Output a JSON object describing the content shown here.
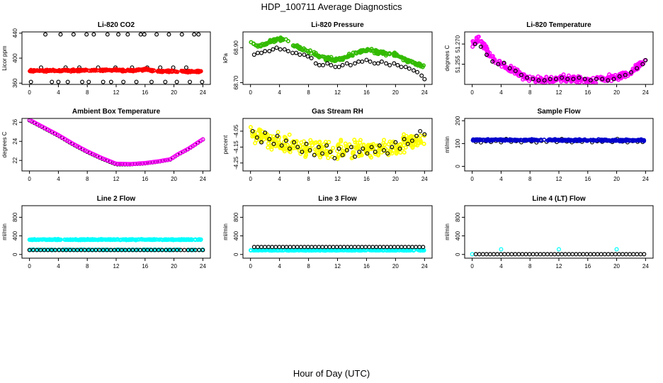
{
  "title": "HDP_100711  Average Diagnostics",
  "xlabel": "Hour of Day (UTC)",
  "x_ticks": [
    0,
    4,
    8,
    12,
    16,
    20,
    24
  ],
  "chart_data": [
    {
      "type": "scatter",
      "title": "Li-820 CO2",
      "ylabel": "Licor ppm",
      "ylim": [
        358,
        442
      ],
      "yticks": [
        "360",
        "400",
        "440"
      ],
      "ytick_values": [
        360,
        400,
        440
      ],
      "series": [
        {
          "name": "black",
          "color": "#000000",
          "kind": "sparse",
          "x": [
            0.2,
            1.6,
            2.2,
            3.1,
            4.0,
            4.3,
            5.0,
            5.3,
            6.1,
            6.9,
            7.3,
            7.9,
            8.2,
            8.9,
            9.5,
            10.2,
            10.8,
            11.3,
            11.9,
            12.3,
            13.0,
            13.6,
            14.2,
            14.8,
            15.4,
            15.9,
            16.3,
            16.9,
            17.6,
            18.1,
            18.8,
            19.3,
            19.9,
            20.4,
            21.1,
            21.7,
            22.2,
            22.8,
            23.4,
            23.9
          ],
          "y": [
            362,
            385,
            438,
            362,
            362,
            438,
            385,
            362,
            438,
            385,
            362,
            438,
            362,
            438,
            385,
            362,
            438,
            362,
            385,
            438,
            362,
            438,
            385,
            362,
            438,
            438,
            385,
            362,
            438,
            385,
            362,
            438,
            385,
            362,
            438,
            385,
            362,
            438,
            438,
            362
          ]
        },
        {
          "name": "red",
          "color": "#ff0000",
          "kind": "dense",
          "points": [
            [
              0,
              380
            ],
            [
              4,
              380
            ],
            [
              8,
              380.5
            ],
            [
              12,
              381
            ],
            [
              14.5,
              380
            ],
            [
              15.5,
              381
            ],
            [
              16.2,
              383
            ],
            [
              17,
              379.5
            ],
            [
              20,
              379
            ],
            [
              24,
              378.5
            ]
          ],
          "noise": 1.2,
          "count": 300
        }
      ]
    },
    {
      "type": "scatter",
      "title": "Li-820 Pressure",
      "ylabel": "kPa",
      "ylim": [
        68.69,
        68.99
      ],
      "yticks": [
        "68.70",
        "68.90"
      ],
      "ytick_values": [
        68.7,
        68.9
      ],
      "series": [
        {
          "name": "green",
          "color": "#33bb00",
          "kind": "dense",
          "points": [
            [
              0,
              68.93
            ],
            [
              1,
              68.91
            ],
            [
              2,
              68.92
            ],
            [
              3,
              68.94
            ],
            [
              4,
              68.95
            ],
            [
              5,
              68.94
            ],
            [
              6,
              68.91
            ],
            [
              8,
              68.88
            ],
            [
              10,
              68.84
            ],
            [
              12,
              68.83
            ],
            [
              14,
              68.86
            ],
            [
              16,
              68.89
            ],
            [
              17,
              68.88
            ],
            [
              18,
              68.87
            ],
            [
              20,
              68.86
            ],
            [
              22,
              68.82
            ],
            [
              24,
              68.79
            ]
          ],
          "noise": 0.008,
          "count": 260
        },
        {
          "name": "black",
          "color": "#000000",
          "kind": "sparse",
          "x": [
            0.5,
            1.0,
            1.5,
            2.0,
            2.6,
            3.1,
            3.6,
            4.1,
            4.7,
            5.2,
            5.8,
            6.3,
            6.8,
            7.4,
            7.9,
            8.4,
            9.0,
            9.5,
            10.0,
            10.6,
            11.1,
            11.7,
            12.2,
            12.7,
            13.3,
            13.8,
            14.4,
            14.9,
            15.4,
            16.0,
            16.5,
            17.1,
            17.6,
            18.1,
            18.7,
            19.2,
            19.8,
            20.3,
            20.8,
            21.4,
            21.9,
            22.5,
            23.0,
            23.6,
            24.0
          ],
          "y": [
            68.86,
            68.87,
            68.87,
            68.88,
            68.88,
            68.89,
            68.9,
            68.89,
            68.89,
            68.88,
            68.87,
            68.87,
            68.86,
            68.86,
            68.85,
            68.84,
            68.81,
            68.8,
            68.8,
            68.81,
            68.8,
            68.79,
            68.79,
            68.8,
            68.81,
            68.8,
            68.81,
            68.82,
            68.82,
            68.83,
            68.82,
            68.81,
            68.81,
            68.82,
            68.81,
            68.8,
            68.81,
            68.8,
            68.79,
            68.79,
            68.78,
            68.77,
            68.76,
            68.74,
            68.72
          ]
        }
      ]
    },
    {
      "type": "scatter",
      "title": "Li-820 Temperature",
      "ylabel": "degrees C",
      "ylim": [
        51.24,
        51.279
      ],
      "yticks": [
        "51.255",
        "51.270"
      ],
      "ytick_values": [
        51.255,
        51.27
      ],
      "series": [
        {
          "name": "magenta",
          "color": "#ff00ff",
          "kind": "dense",
          "points": [
            [
              0,
              51.27
            ],
            [
              1,
              51.274
            ],
            [
              2,
              51.265
            ],
            [
              3,
              51.258
            ],
            [
              4,
              51.255
            ],
            [
              5,
              51.252
            ],
            [
              6,
              51.249
            ],
            [
              7,
              51.246
            ],
            [
              8,
              51.244
            ],
            [
              10,
              51.243
            ],
            [
              12,
              51.244
            ],
            [
              14,
              51.244
            ],
            [
              16,
              51.243
            ],
            [
              18,
              51.244
            ],
            [
              20,
              51.245
            ],
            [
              22,
              51.249
            ],
            [
              24,
              51.258
            ]
          ],
          "noise": 0.0022,
          "count": 320
        },
        {
          "name": "black",
          "color": "#000000",
          "kind": "sparse",
          "x": [
            0.4,
            1.2,
            2.0,
            2.8,
            3.6,
            4.4,
            5.2,
            6.0,
            6.8,
            7.6,
            8.4,
            9.2,
            10.0,
            10.8,
            11.6,
            12.4,
            13.2,
            14.0,
            14.8,
            15.6,
            16.4,
            17.2,
            18.0,
            18.8,
            19.6,
            20.4,
            21.2,
            22.0,
            22.8,
            23.6,
            24.0
          ],
          "y": [
            51.27,
            51.268,
            51.262,
            51.257,
            51.255,
            51.256,
            51.252,
            51.25,
            51.247,
            51.245,
            51.244,
            51.243,
            51.243,
            51.244,
            51.244,
            51.245,
            51.244,
            51.244,
            51.245,
            51.244,
            51.243,
            51.244,
            51.244,
            51.243,
            51.244,
            51.246,
            51.247,
            51.249,
            51.252,
            51.255,
            51.258
          ]
        }
      ]
    },
    {
      "type": "scatter",
      "title": "Ambient Box Temperature",
      "ylabel": "degrees C",
      "ylim": [
        20.9,
        26.4
      ],
      "yticks": [
        "22",
        "24",
        "26"
      ],
      "ytick_values": [
        22,
        24,
        26
      ],
      "series": [
        {
          "name": "black",
          "color": "#000000",
          "kind": "curve",
          "points": [
            [
              0,
              26.2
            ],
            [
              2,
              25.4
            ],
            [
              4,
              24.6
            ],
            [
              6,
              23.7
            ],
            [
              8,
              22.9
            ],
            [
              10,
              22.2
            ],
            [
              12,
              21.6
            ],
            [
              14,
              21.6
            ],
            [
              16,
              21.7
            ],
            [
              18,
              21.9
            ],
            [
              19.5,
              22.1
            ],
            [
              20.5,
              22.6
            ],
            [
              22,
              23.2
            ],
            [
              24,
              24.2
            ]
          ],
          "count": 70
        },
        {
          "name": "magenta",
          "color": "#ff00ff",
          "kind": "curve",
          "points": [
            [
              0,
              26.25
            ],
            [
              2,
              25.45
            ],
            [
              4,
              24.65
            ],
            [
              6,
              23.75
            ],
            [
              8,
              22.95
            ],
            [
              10,
              22.25
            ],
            [
              12,
              21.65
            ],
            [
              14,
              21.62
            ],
            [
              16,
              21.72
            ],
            [
              18,
              21.92
            ],
            [
              19.5,
              22.12
            ],
            [
              20.5,
              22.62
            ],
            [
              22,
              23.22
            ],
            [
              24,
              24.22
            ]
          ],
          "count": 120
        }
      ]
    },
    {
      "type": "scatter",
      "title": "Gas Stream RH",
      "ylabel": "percent",
      "ylim": [
        -4.3,
        -3.97
      ],
      "yticks": [
        "-4.25",
        "-4.15",
        "-4.05"
      ],
      "ytick_values": [
        -4.25,
        -4.15,
        -4.05
      ],
      "series": [
        {
          "name": "yellow",
          "color": "#ffff00",
          "kind": "dense",
          "points": [
            [
              0,
              -4.06
            ],
            [
              2,
              -4.09
            ],
            [
              4,
              -4.12
            ],
            [
              6,
              -4.14
            ],
            [
              8,
              -4.16
            ],
            [
              10,
              -4.17
            ],
            [
              12,
              -4.18
            ],
            [
              14,
              -4.17
            ],
            [
              16,
              -4.17
            ],
            [
              18,
              -4.16
            ],
            [
              20,
              -4.14
            ],
            [
              22,
              -4.11
            ],
            [
              24,
              -4.1
            ]
          ],
          "noise": 0.05,
          "count": 340
        },
        {
          "name": "black",
          "color": "#000000",
          "kind": "sparse",
          "x": [
            0.3,
            0.9,
            1.5,
            2.0,
            2.6,
            3.2,
            3.7,
            4.3,
            4.9,
            5.4,
            6.0,
            6.5,
            7.1,
            7.7,
            8.2,
            8.8,
            9.4,
            9.9,
            10.5,
            11.0,
            11.6,
            12.2,
            12.7,
            13.3,
            13.9,
            14.4,
            15.0,
            15.5,
            16.1,
            16.7,
            17.2,
            17.8,
            18.4,
            18.9,
            19.5,
            20.0,
            20.6,
            21.2,
            21.7,
            22.3,
            22.9,
            23.4,
            24.0
          ],
          "y": [
            -4.05,
            -4.09,
            -4.12,
            -4.06,
            -4.1,
            -4.13,
            -4.08,
            -4.14,
            -4.11,
            -4.16,
            -4.12,
            -4.15,
            -4.18,
            -4.13,
            -4.17,
            -4.2,
            -4.15,
            -4.19,
            -4.14,
            -4.18,
            -4.22,
            -4.16,
            -4.2,
            -4.17,
            -4.15,
            -4.21,
            -4.18,
            -4.16,
            -4.19,
            -4.15,
            -4.18,
            -4.14,
            -4.17,
            -4.19,
            -4.15,
            -4.12,
            -4.16,
            -4.1,
            -4.13,
            -4.11,
            -4.08,
            -4.05,
            -4.07
          ]
        }
      ]
    },
    {
      "type": "scatter",
      "title": "Sample Flow",
      "ylabel": "ml/min",
      "ylim": [
        -20,
        210
      ],
      "yticks": [
        "0",
        "100",
        "200"
      ],
      "ytick_values": [
        0,
        100,
        200
      ],
      "series": [
        {
          "name": "black",
          "color": "#000000",
          "kind": "sparse",
          "x": [
            0.5,
            1.2,
            1.9,
            2.6,
            3.3,
            4.0,
            4.7,
            5.4,
            6.1,
            6.8,
            7.5,
            8.2,
            8.9,
            9.6,
            10.3,
            11.0,
            11.7,
            12.4,
            13.1,
            13.8,
            14.5,
            15.2,
            15.9,
            16.6,
            17.3,
            18.0,
            18.7,
            19.4,
            20.1,
            20.8,
            21.5,
            22.2,
            22.9,
            23.6
          ],
          "y": [
            108,
            105,
            110,
            107,
            112,
            106,
            120,
            108,
            111,
            106,
            113,
            109,
            105,
            112,
            108,
            114,
            107,
            120,
            109,
            106,
            111,
            108,
            113,
            106,
            110,
            108,
            112,
            107,
            120,
            109,
            106,
            111,
            108,
            107
          ]
        },
        {
          "name": "blue",
          "color": "#0000cc",
          "kind": "dense",
          "points": [
            [
              0,
              116
            ],
            [
              24,
              114
            ]
          ],
          "noise": 3,
          "count": 300
        }
      ]
    },
    {
      "type": "scatter",
      "title": "Line 2 Flow",
      "ylabel": "ml/min",
      "ylim": [
        -80,
        1050
      ],
      "yticks": [
        "0",
        "400",
        "800"
      ],
      "ytick_values": [
        0,
        400,
        800
      ],
      "series": [
        {
          "name": "cyan",
          "color": "#00ffff",
          "kind": "dense",
          "points": [
            [
              0,
              320
            ],
            [
              24,
              320
            ]
          ],
          "noise": 8,
          "count": 280
        },
        {
          "name": "cyan-low",
          "color": "#00ffff",
          "kind": "dense",
          "points": [
            [
              0,
              100
            ],
            [
              24,
              100
            ]
          ],
          "noise": 5,
          "count": 120
        },
        {
          "name": "black",
          "color": "#000000",
          "kind": "curve",
          "points": [
            [
              0,
              95
            ],
            [
              24,
              95
            ]
          ],
          "count": 48
        }
      ]
    },
    {
      "type": "scatter",
      "title": "Line 3 Flow",
      "ylabel": "ml/min",
      "ylim": [
        -80,
        1050
      ],
      "yticks": [
        "0",
        "400",
        "800"
      ],
      "ytick_values": [
        0,
        400,
        800
      ],
      "series": [
        {
          "name": "cyan",
          "color": "#00ffff",
          "kind": "dense",
          "points": [
            [
              0,
              90
            ],
            [
              24,
              90
            ]
          ],
          "noise": 6,
          "count": 260
        },
        {
          "name": "black",
          "color": "#000000",
          "kind": "curve",
          "points": [
            [
              0.5,
              160
            ],
            [
              23.8,
              160
            ]
          ],
          "count": 48
        }
      ]
    },
    {
      "type": "scatter",
      "title": "Line 4 (LT) Flow",
      "ylabel": "ml/min",
      "ylim": [
        -80,
        1050
      ],
      "yticks": [
        "0",
        "400",
        "800"
      ],
      "ytick_values": [
        0,
        400,
        800
      ],
      "series": [
        {
          "name": "cyan",
          "color": "#00ffff",
          "kind": "sparse",
          "x": [
            0,
            4,
            12,
            20
          ],
          "y": [
            5,
            110,
            110,
            110
          ]
        },
        {
          "name": "black",
          "color": "#000000",
          "kind": "curve",
          "points": [
            [
              0.5,
              5
            ],
            [
              23.8,
              5
            ]
          ],
          "count": 48
        }
      ]
    }
  ]
}
